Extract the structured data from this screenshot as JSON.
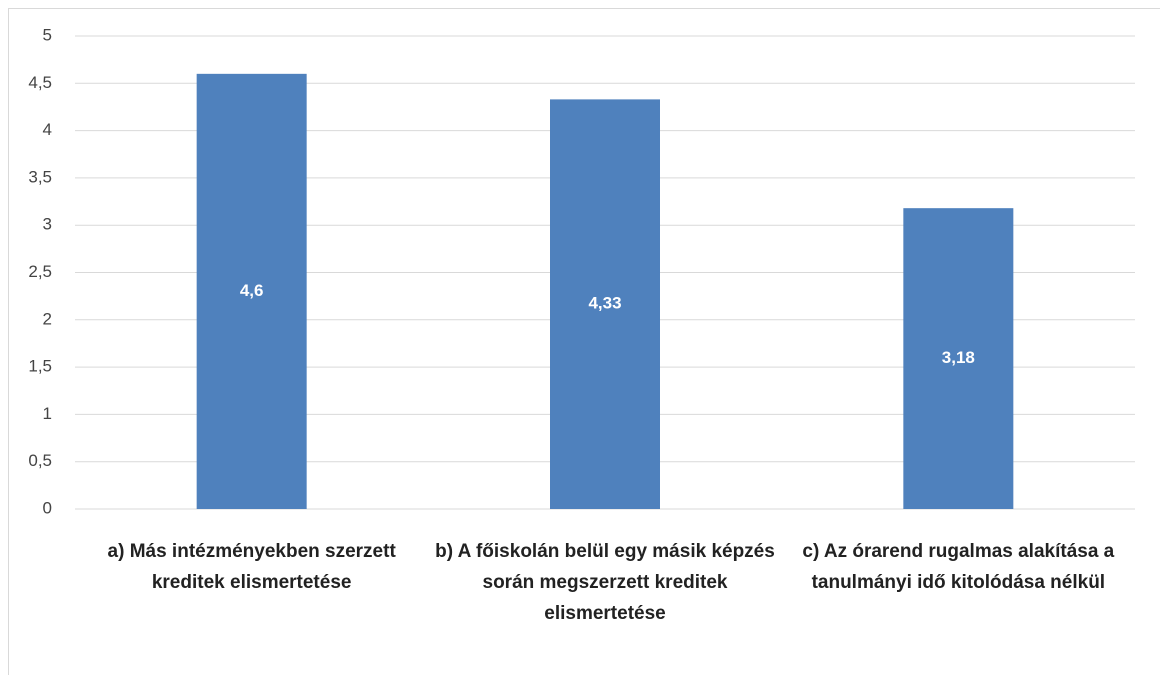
{
  "chart_data": {
    "type": "bar",
    "categories": [
      "a) Más intézményekben szerzett kreditek elismertetése",
      "b) A főiskolán belül egy másik képzés során megszerzett kreditek elismertetése",
      "c) Az órarend rugalmas alakítása a tanulmányi idő kitolódása nélkül"
    ],
    "values": [
      4.6,
      4.33,
      3.18
    ],
    "value_labels": [
      "4,6",
      "4,33",
      "3,18"
    ],
    "color": "#4f81bd",
    "ylim": [
      0,
      5
    ],
    "yticks": [
      0,
      {
        "value": 0.5,
        "label": "0,5"
      },
      1,
      {
        "value": 1.5,
        "label": "1,5"
      },
      2,
      {
        "value": 2.5,
        "label": "2,5"
      },
      3,
      {
        "value": 3.5,
        "label": "3,5"
      },
      4,
      {
        "value": 4.5,
        "label": "4,5"
      },
      5
    ],
    "grid": true
  }
}
